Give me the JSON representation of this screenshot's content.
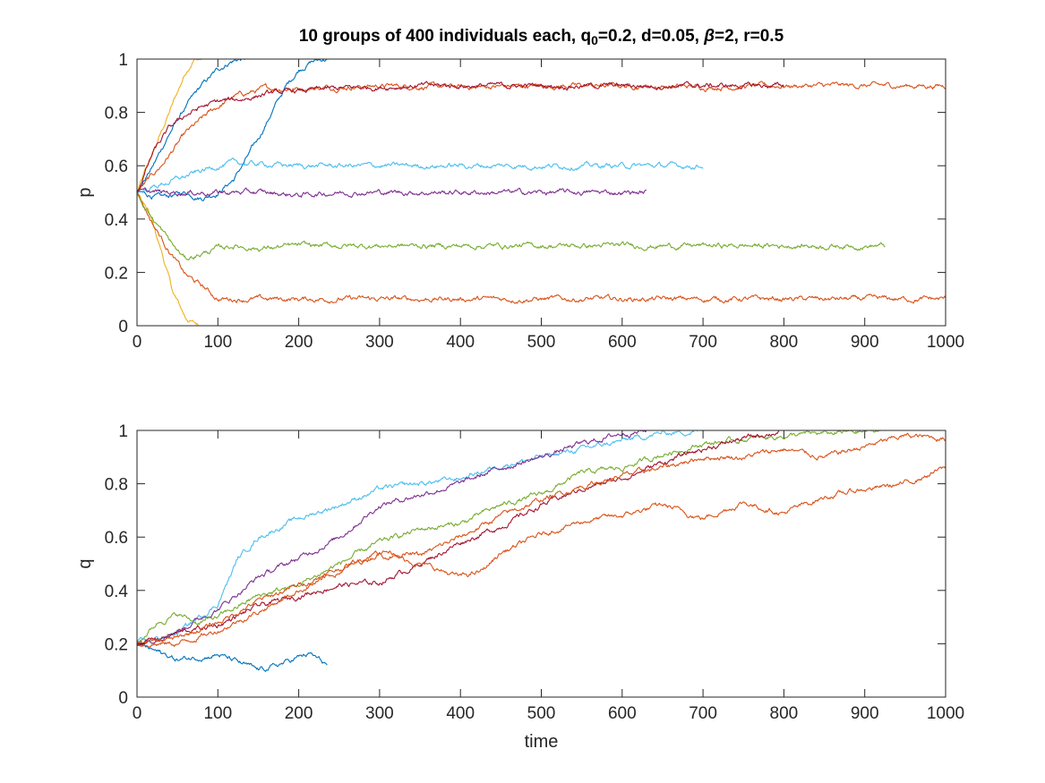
{
  "title": {
    "prefix": "10 groups of 400 individuals each, q",
    "sub": "0",
    "suffix": "=0.2, d=0.05, ",
    "beta": "β",
    "tail": "=2, r=0.5"
  },
  "colors": {
    "blue": "#0072BD",
    "orange": "#D95319",
    "yellow": "#EDB120",
    "purple": "#7E2F8E",
    "green": "#77AC30",
    "cyan": "#4DBEEE",
    "darkred": "#A2142F",
    "axis": "#262626"
  },
  "chart_data": [
    {
      "type": "line",
      "ylabel": "p",
      "xlabel": "",
      "xlim": [
        0,
        1000
      ],
      "ylim": [
        0,
        1
      ],
      "xticks": [
        "0",
        "100",
        "200",
        "300",
        "400",
        "500",
        "600",
        "700",
        "800",
        "900",
        "1000"
      ],
      "yticks": [
        "0",
        "0.2",
        "0.4",
        "0.6",
        "0.8",
        "1"
      ],
      "grid": false,
      "series": [
        {
          "color": "yellow",
          "x": [
            0,
            20,
            40,
            60,
            70,
            80
          ],
          "y": [
            0.5,
            0.65,
            0.8,
            0.95,
            1.0,
            1.0
          ]
        },
        {
          "color": "yellow",
          "x": [
            0,
            15,
            30,
            45,
            60,
            70,
            80
          ],
          "y": [
            0.5,
            0.42,
            0.28,
            0.12,
            0.03,
            0.01,
            0.0
          ]
        },
        {
          "color": "blue",
          "x": [
            0,
            20,
            40,
            60,
            80,
            100,
            115,
            125,
            135
          ],
          "y": [
            0.5,
            0.6,
            0.72,
            0.82,
            0.9,
            0.96,
            0.99,
            1.0,
            1.0
          ]
        },
        {
          "color": "blue",
          "x": [
            0,
            30,
            60,
            80,
            100,
            120,
            150,
            170,
            185,
            200,
            215,
            230,
            240
          ],
          "y": [
            0.5,
            0.48,
            0.5,
            0.48,
            0.5,
            0.55,
            0.7,
            0.82,
            0.9,
            0.96,
            0.99,
            1.0,
            1.0
          ]
        },
        {
          "color": "orange",
          "x": [
            0,
            30,
            60,
            90,
            120,
            160,
            200,
            300,
            400,
            500,
            600,
            700,
            800,
            900,
            1000
          ],
          "y": [
            0.5,
            0.6,
            0.72,
            0.8,
            0.86,
            0.89,
            0.89,
            0.9,
            0.895,
            0.9,
            0.9,
            0.895,
            0.9,
            0.9,
            0.9
          ]
        },
        {
          "color": "orange",
          "x": [
            0,
            20,
            40,
            60,
            80,
            100,
            150,
            200,
            300,
            400,
            500,
            600,
            700,
            800,
            900,
            1000
          ],
          "y": [
            0.5,
            0.38,
            0.28,
            0.19,
            0.15,
            0.1,
            0.1,
            0.1,
            0.1,
            0.1,
            0.1,
            0.1,
            0.1,
            0.1,
            0.1,
            0.1
          ]
        },
        {
          "color": "darkred",
          "x": [
            0,
            20,
            40,
            60,
            80,
            100,
            130,
            160,
            200,
            250,
            300,
            350,
            400,
            500,
            600,
            700,
            800
          ],
          "y": [
            0.5,
            0.65,
            0.74,
            0.79,
            0.82,
            0.84,
            0.85,
            0.87,
            0.88,
            0.89,
            0.895,
            0.9,
            0.9,
            0.9,
            0.9,
            0.9,
            0.9
          ]
        },
        {
          "color": "cyan",
          "x": [
            0,
            20,
            40,
            60,
            80,
            100,
            120,
            200,
            300,
            400,
            500,
            600,
            700
          ],
          "y": [
            0.5,
            0.52,
            0.54,
            0.56,
            0.58,
            0.6,
            0.61,
            0.6,
            0.6,
            0.6,
            0.6,
            0.6,
            0.6
          ]
        },
        {
          "color": "purple",
          "x": [
            0,
            50,
            100,
            150,
            200,
            250,
            300,
            400,
            500,
            630
          ],
          "y": [
            0.5,
            0.5,
            0.5,
            0.5,
            0.49,
            0.5,
            0.5,
            0.5,
            0.5,
            0.5
          ]
        },
        {
          "color": "green",
          "x": [
            0,
            20,
            40,
            50,
            60,
            80,
            100,
            120,
            150,
            200,
            300,
            400,
            500,
            600,
            700,
            800,
            925
          ],
          "y": [
            0.5,
            0.4,
            0.32,
            0.28,
            0.25,
            0.27,
            0.29,
            0.3,
            0.29,
            0.3,
            0.3,
            0.3,
            0.3,
            0.3,
            0.3,
            0.3,
            0.3
          ]
        }
      ]
    },
    {
      "type": "line",
      "ylabel": "q",
      "xlabel": "time",
      "xlim": [
        0,
        1000
      ],
      "ylim": [
        0,
        1
      ],
      "xticks": [
        "0",
        "100",
        "200",
        "300",
        "400",
        "500",
        "600",
        "700",
        "800",
        "900",
        "1000"
      ],
      "yticks": [
        "0",
        "0.2",
        "0.4",
        "0.6",
        "0.8",
        "1"
      ],
      "grid": false,
      "series": [
        {
          "color": "blue",
          "x": [
            0,
            25,
            50,
            75,
            100,
            125,
            150,
            175,
            200,
            215,
            235
          ],
          "y": [
            0.2,
            0.17,
            0.14,
            0.15,
            0.16,
            0.13,
            0.1,
            0.12,
            0.15,
            0.16,
            0.12
          ]
        },
        {
          "color": "cyan",
          "x": [
            0,
            50,
            100,
            125,
            150,
            200,
            250,
            300,
            350,
            400,
            450,
            500,
            550,
            600,
            650,
            700
          ],
          "y": [
            0.2,
            0.24,
            0.35,
            0.52,
            0.6,
            0.67,
            0.72,
            0.78,
            0.8,
            0.82,
            0.87,
            0.9,
            0.93,
            0.96,
            0.99,
            1.0
          ]
        },
        {
          "color": "purple",
          "x": [
            0,
            50,
            100,
            150,
            200,
            250,
            300,
            350,
            400,
            450,
            500,
            550,
            600,
            630
          ],
          "y": [
            0.2,
            0.25,
            0.33,
            0.45,
            0.52,
            0.6,
            0.72,
            0.76,
            0.8,
            0.86,
            0.9,
            0.95,
            0.99,
            1.0
          ]
        },
        {
          "color": "green",
          "x": [
            0,
            25,
            50,
            75,
            100,
            150,
            200,
            250,
            300,
            350,
            400,
            450,
            500,
            550,
            600,
            650,
            700,
            800,
            925
          ],
          "y": [
            0.2,
            0.28,
            0.31,
            0.28,
            0.3,
            0.38,
            0.42,
            0.5,
            0.58,
            0.63,
            0.65,
            0.72,
            0.76,
            0.84,
            0.86,
            0.91,
            0.95,
            0.98,
            1.0
          ]
        },
        {
          "color": "darkred",
          "x": [
            0,
            50,
            100,
            150,
            200,
            250,
            300,
            350,
            400,
            450,
            500,
            550,
            600,
            650,
            700,
            750,
            800
          ],
          "y": [
            0.2,
            0.24,
            0.27,
            0.34,
            0.38,
            0.42,
            0.43,
            0.5,
            0.58,
            0.64,
            0.72,
            0.78,
            0.82,
            0.88,
            0.93,
            0.97,
            1.0
          ]
        },
        {
          "color": "orange",
          "x": [
            0,
            50,
            100,
            150,
            200,
            250,
            300,
            350,
            400,
            450,
            500,
            550,
            600,
            650,
            700,
            750,
            800,
            850,
            900,
            950,
            1000
          ],
          "y": [
            0.2,
            0.22,
            0.28,
            0.36,
            0.42,
            0.48,
            0.55,
            0.53,
            0.6,
            0.68,
            0.74,
            0.79,
            0.83,
            0.86,
            0.9,
            0.9,
            0.93,
            0.9,
            0.94,
            0.98,
            0.97
          ]
        },
        {
          "color": "orange",
          "x": [
            0,
            50,
            100,
            150,
            200,
            250,
            300,
            350,
            400,
            425,
            450,
            500,
            550,
            600,
            650,
            700,
            750,
            800,
            850,
            900,
            950,
            1000
          ],
          "y": [
            0.2,
            0.2,
            0.25,
            0.32,
            0.4,
            0.47,
            0.54,
            0.5,
            0.45,
            0.47,
            0.54,
            0.61,
            0.66,
            0.68,
            0.72,
            0.67,
            0.73,
            0.69,
            0.75,
            0.78,
            0.8,
            0.86
          ]
        }
      ]
    }
  ]
}
